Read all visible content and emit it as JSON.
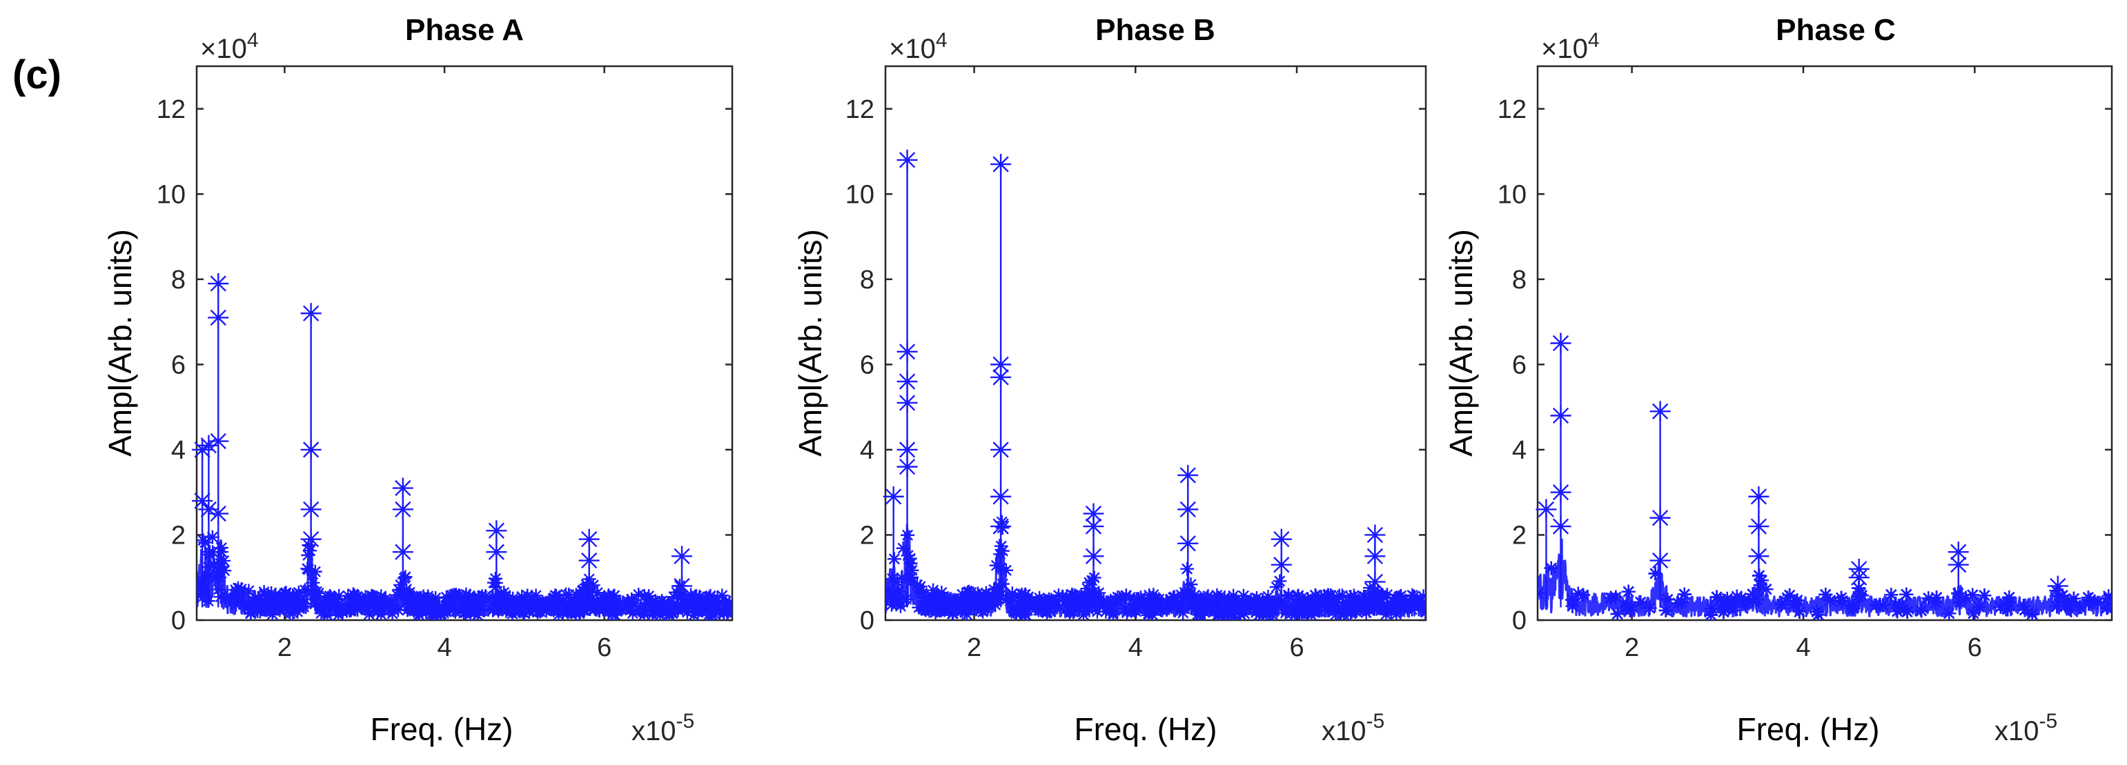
{
  "figure": {
    "panel_label": "(c)"
  },
  "chart_data": [
    {
      "type": "scatter",
      "title": "Phase A",
      "xlabel": "Freq. (Hz)",
      "ylabel": "Ampl(Arb. units)",
      "x_multiplier": "x10",
      "x_multiplier_exp": "-5",
      "y_multiplier": "×10",
      "y_multiplier_exp": "4",
      "xlim": [
        0.9,
        7.6
      ],
      "ylim": [
        0,
        13
      ],
      "xticks": [
        2,
        4,
        6
      ],
      "yticks": [
        0,
        2,
        4,
        6,
        8,
        10,
        12
      ],
      "marker": "*",
      "color": "#1a1aff",
      "peaks": [
        {
          "x": 0.97,
          "values": [
            2.8,
            4.0
          ]
        },
        {
          "x": 1.05,
          "values": [
            2.6,
            4.1
          ]
        },
        {
          "x": 1.17,
          "values": [
            2.5,
            4.2,
            7.1,
            7.9
          ]
        },
        {
          "x": 2.33,
          "values": [
            1.9,
            2.6,
            4.0,
            7.2
          ]
        },
        {
          "x": 3.48,
          "values": [
            1.6,
            2.6,
            3.1
          ]
        },
        {
          "x": 4.65,
          "values": [
            1.6,
            2.1
          ]
        },
        {
          "x": 5.81,
          "values": [
            1.4,
            1.9
          ]
        },
        {
          "x": 6.97,
          "values": [
            0.8,
            1.5
          ]
        }
      ]
    },
    {
      "type": "scatter",
      "title": "Phase B",
      "xlabel": "Freq. (Hz)",
      "ylabel": "Ampl(Arb. units)",
      "x_multiplier": "x10",
      "x_multiplier_exp": "-5",
      "y_multiplier": "×10",
      "y_multiplier_exp": "4",
      "xlim": [
        0.9,
        7.6
      ],
      "ylim": [
        0,
        13
      ],
      "xticks": [
        2,
        4,
        6
      ],
      "yticks": [
        0,
        2,
        4,
        6,
        8,
        10,
        12
      ],
      "marker": "*",
      "color": "#1a1aff",
      "peaks": [
        {
          "x": 1.0,
          "values": [
            2.9
          ]
        },
        {
          "x": 1.17,
          "values": [
            3.6,
            4.0,
            5.1,
            5.6,
            6.3,
            10.8
          ]
        },
        {
          "x": 2.33,
          "values": [
            2.2,
            2.9,
            4.0,
            5.7,
            6.0,
            10.7
          ]
        },
        {
          "x": 3.48,
          "values": [
            1.5,
            2.2,
            2.5
          ]
        },
        {
          "x": 4.65,
          "values": [
            1.8,
            2.6,
            3.4
          ]
        },
        {
          "x": 5.81,
          "values": [
            1.3,
            1.9
          ]
        },
        {
          "x": 6.97,
          "values": [
            0.9,
            1.5,
            2.0
          ]
        }
      ]
    },
    {
      "type": "scatter",
      "title": "Phase C",
      "xlabel": "Freq. (Hz)",
      "ylabel": "Ampl(Arb. units)",
      "x_multiplier": "x10",
      "x_multiplier_exp": "-5",
      "y_multiplier": "×10",
      "y_multiplier_exp": "4",
      "xlim": [
        0.9,
        7.6
      ],
      "ylim": [
        0,
        13
      ],
      "xticks": [
        2,
        4,
        6
      ],
      "yticks": [
        0,
        2,
        4,
        6,
        8,
        10,
        12
      ],
      "marker": "*",
      "color": "#1a1aff",
      "peaks": [
        {
          "x": 1.0,
          "values": [
            2.6
          ]
        },
        {
          "x": 1.17,
          "values": [
            2.2,
            3.0,
            4.8,
            6.5
          ]
        },
        {
          "x": 2.33,
          "values": [
            1.4,
            2.4,
            4.9
          ]
        },
        {
          "x": 3.48,
          "values": [
            1.5,
            2.2,
            2.9
          ]
        },
        {
          "x": 4.65,
          "values": [
            1.0,
            1.2
          ]
        },
        {
          "x": 5.81,
          "values": [
            1.3,
            1.6
          ]
        },
        {
          "x": 6.97,
          "values": [
            0.8
          ]
        }
      ]
    }
  ]
}
